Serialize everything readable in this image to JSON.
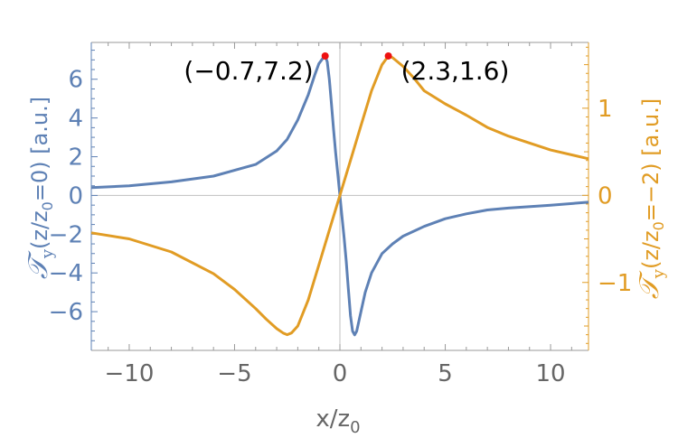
{
  "chart_data": {
    "type": "line",
    "xlabel": "x/z",
    "xlabel_sub": "0",
    "xlim": [
      -11.8,
      11.8
    ],
    "ylim_left": [
      -8.0,
      7.9
    ],
    "ylim_right": [
      -1.78,
      1.755
    ],
    "x_ticks": [
      -10,
      -5,
      0,
      5,
      10
    ],
    "x_tick_labels": [
      "−10",
      "−5",
      "0",
      "5",
      "10"
    ],
    "y_left_ticks": [
      -6,
      -4,
      -2,
      0,
      2,
      4,
      6
    ],
    "y_left_tick_labels": [
      "−6",
      "−4",
      "−2",
      "0",
      "2",
      "4",
      "6"
    ],
    "y_right_ticks": [
      -1,
      0,
      1
    ],
    "y_right_tick_labels": [
      "−1",
      "0",
      "1"
    ],
    "ylabel_left": {
      "main": "𝒯",
      "sub": "y",
      "mid": "(z/z",
      "sub2": "0",
      "tail": "=0) [a.u.]"
    },
    "ylabel_right": {
      "main": "𝒯",
      "sub": "y",
      "mid": "(z/z",
      "sub2": "0",
      "tail": "=−2) [a.u.]"
    },
    "colors": {
      "left": "#5e81b5",
      "right": "#e19c24",
      "marker": "#ee1111",
      "axis": "#999999",
      "zero_line": "#c0c0c0",
      "text": "#666666"
    },
    "series": [
      {
        "axis": "left",
        "x": [
          -11.8,
          -10,
          -8,
          -6,
          -4,
          -3,
          -2.5,
          -2,
          -1.5,
          -1.2,
          -1,
          -0.8,
          -0.7,
          -0.6,
          -0.5,
          -0.4,
          -0.3,
          -0.2,
          -0.1,
          0,
          0.1,
          0.2,
          0.3,
          0.4,
          0.5,
          0.6,
          0.7,
          0.8,
          1,
          1.2,
          1.5,
          2,
          2.5,
          3,
          4,
          5,
          6,
          7,
          8,
          10,
          11.8
        ],
        "y": [
          0.4,
          0.5,
          0.7,
          1.0,
          1.6,
          2.3,
          2.9,
          3.9,
          5.2,
          6.2,
          6.8,
          7.1,
          7.2,
          6.9,
          6.0,
          4.7,
          3.4,
          2.2,
          1.1,
          0,
          -1.1,
          -2.2,
          -3.4,
          -4.8,
          -6.2,
          -7.0,
          -7.2,
          -7.0,
          -6.0,
          -5.0,
          -4.0,
          -3.0,
          -2.5,
          -2.1,
          -1.6,
          -1.2,
          -0.95,
          -0.75,
          -0.65,
          -0.5,
          -0.35
        ]
      },
      {
        "axis": "right",
        "x": [
          -11.8,
          -10,
          -8,
          -6,
          -5,
          -4,
          -3.5,
          -3,
          -2.7,
          -2.5,
          -2.3,
          -2,
          -1.5,
          -1,
          -0.5,
          0,
          0.5,
          1,
          1.5,
          2,
          2.3,
          2.5,
          3,
          3.5,
          4,
          5,
          6,
          7,
          8,
          10,
          11.8
        ],
        "y": [
          -0.43,
          -0.5,
          -0.65,
          -0.9,
          -1.08,
          -1.3,
          -1.42,
          -1.53,
          -1.58,
          -1.6,
          -1.58,
          -1.5,
          -1.2,
          -0.8,
          -0.4,
          0,
          0.4,
          0.8,
          1.2,
          1.5,
          1.6,
          1.58,
          1.48,
          1.35,
          1.2,
          1.05,
          0.92,
          0.78,
          0.68,
          0.52,
          0.42
        ]
      }
    ],
    "annotations": [
      {
        "text": "(−0.7,7.2)",
        "x": -0.7,
        "y": 7.2,
        "axis": "left",
        "anchor": "end"
      },
      {
        "text": "(2.3,1.6)",
        "x": 2.3,
        "y": 1.6,
        "axis": "right",
        "anchor": "start"
      }
    ]
  }
}
